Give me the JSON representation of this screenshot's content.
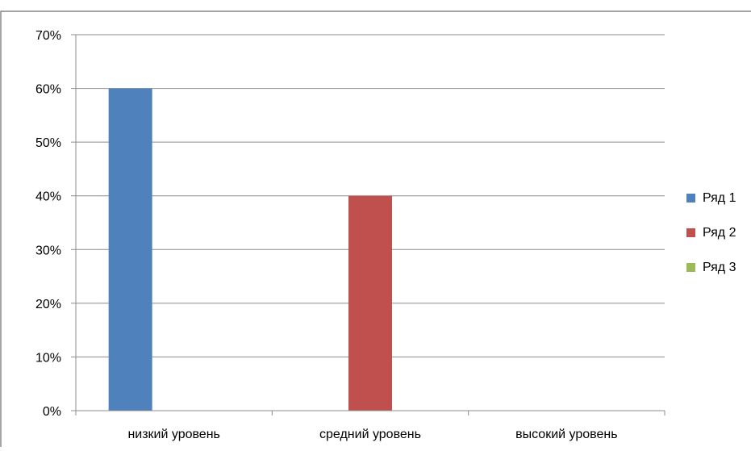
{
  "chart_data": {
    "type": "bar",
    "title": "",
    "xlabel": "",
    "ylabel": "",
    "categories": [
      "низкий уровень",
      "средний уровень",
      "высокий уровень"
    ],
    "yticks": [
      "0%",
      "10%",
      "20%",
      "30%",
      "40%",
      "50%",
      "60%",
      "70%"
    ],
    "ylim": [
      0,
      70
    ],
    "grid": true,
    "legend_position": "right",
    "series": [
      {
        "name": "Ряд 1",
        "color": "#4f81bd",
        "values": [
          60,
          null,
          null
        ]
      },
      {
        "name": "Ряд 2",
        "color": "#c0504d",
        "values": [
          null,
          40,
          null
        ]
      },
      {
        "name": "Ряд 3",
        "color": "#9bbb59",
        "values": [
          null,
          null,
          null
        ]
      }
    ]
  }
}
